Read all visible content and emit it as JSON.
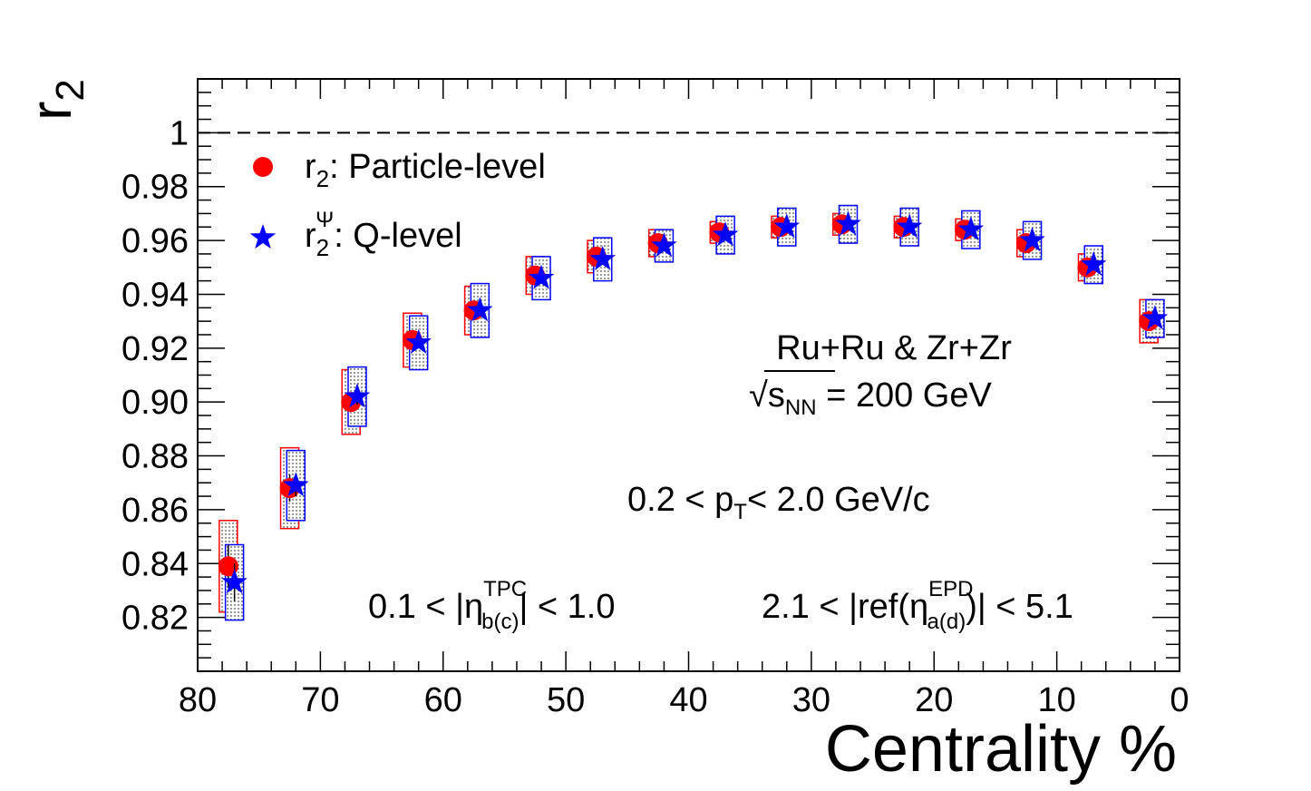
{
  "chart_data": {
    "type": "scatter",
    "title": "",
    "xlabel": "Centrality %",
    "ylabel_base": "r",
    "ylabel_sub": "2",
    "xlim": [
      80,
      0
    ],
    "ylim": [
      0.8,
      1.02
    ],
    "x_ticks": [
      "80",
      "70",
      "60",
      "50",
      "40",
      "30",
      "20",
      "10",
      "0"
    ],
    "x_tick_values": [
      80,
      70,
      60,
      50,
      40,
      30,
      20,
      10,
      0
    ],
    "y_ticks": [
      "0.82",
      "0.84",
      "0.86",
      "0.88",
      "0.90",
      "0.92",
      "0.94",
      "0.96",
      "0.98",
      "1"
    ],
    "y_tick_values": [
      0.82,
      0.84,
      0.86,
      0.88,
      0.9,
      0.92,
      0.94,
      0.96,
      0.98,
      1.0
    ],
    "reference_line": 1.0,
    "series": [
      {
        "name": "r2: Particle-level",
        "marker": "circle",
        "color": "#ff0000",
        "x": [
          77.5,
          72.5,
          67.5,
          62.5,
          57.5,
          52.5,
          47.5,
          42.5,
          37.5,
          32.5,
          27.5,
          22.5,
          17.5,
          12.5,
          7.5,
          2.5
        ],
        "y": [
          0.839,
          0.868,
          0.9,
          0.923,
          0.934,
          0.947,
          0.954,
          0.959,
          0.963,
          0.965,
          0.966,
          0.965,
          0.964,
          0.959,
          0.95,
          0.93
        ],
        "syst": [
          0.017,
          0.015,
          0.012,
          0.01,
          0.009,
          0.007,
          0.006,
          0.005,
          0.004,
          0.004,
          0.004,
          0.004,
          0.004,
          0.005,
          0.005,
          0.008
        ],
        "stat": [
          0.008,
          0.005,
          0.003,
          0.002,
          0.001,
          0.001,
          0.001,
          0.001,
          0.001,
          0.001,
          0.001,
          0.001,
          0.001,
          0.001,
          0.001,
          0.001
        ]
      },
      {
        "name": "r2^Psi: Q-level",
        "marker": "star",
        "color": "#0000ff",
        "x": [
          77.0,
          72.0,
          67.0,
          62.0,
          57.0,
          52.0,
          47.0,
          42.0,
          37.0,
          32.0,
          27.0,
          22.0,
          17.0,
          12.0,
          7.0,
          2.0
        ],
        "y": [
          0.833,
          0.869,
          0.902,
          0.922,
          0.934,
          0.946,
          0.953,
          0.958,
          0.962,
          0.965,
          0.966,
          0.965,
          0.964,
          0.96,
          0.951,
          0.931
        ],
        "syst": [
          0.014,
          0.013,
          0.011,
          0.01,
          0.01,
          0.008,
          0.008,
          0.006,
          0.007,
          0.007,
          0.007,
          0.007,
          0.007,
          0.007,
          0.007,
          0.007
        ],
        "stat": [
          0.007,
          0.004,
          0.003,
          0.002,
          0.001,
          0.001,
          0.001,
          0.001,
          0.001,
          0.001,
          0.001,
          0.001,
          0.001,
          0.001,
          0.001,
          0.001
        ]
      }
    ],
    "legend": {
      "position": "top-left",
      "entries": [
        {
          "main": "r",
          "sub": "2",
          "sup": "",
          "rest": ": Particle-level"
        },
        {
          "main": "r",
          "sub": "2",
          "sup": "Ψ",
          "rest": ": Q-level"
        }
      ]
    },
    "annotations": {
      "system": "Ru+Ru & Zr+Zr",
      "energy_sqrt": "√",
      "energy_s": "s",
      "energy_sub": "NN",
      "energy_rest": " = 200 GeV",
      "pt_a": "0.2 < p",
      "pt_sub": "T",
      "pt_b": "< 2.0 GeV/c",
      "eta_tpc_a": "0.1 < |η",
      "eta_tpc_sub": "b(c)",
      "eta_tpc_sup": "TPC",
      "eta_tpc_b": "| < 1.0",
      "eta_epd_a": "2.1 < |ref(η",
      "eta_epd_sub": "a(d)",
      "eta_epd_sup": "EPD",
      "eta_epd_b": ")| < 5.1"
    }
  }
}
